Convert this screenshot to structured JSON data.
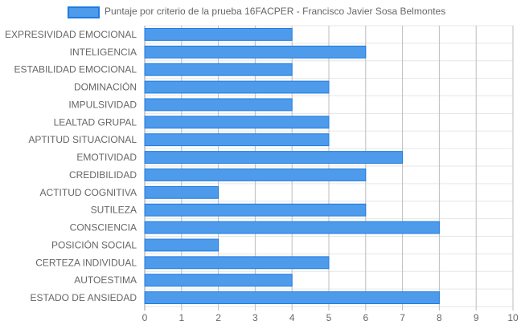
{
  "chart_data": {
    "type": "bar",
    "orientation": "horizontal",
    "categories": [
      "EXPRESIVIDAD EMOCIONAL",
      "INTELIGENCIA",
      "ESTABILIDAD EMOCIONAL",
      "DOMINACIÓN",
      "IMPULSIVIDAD",
      "LEALTAD GRUPAL",
      "APTITUD SITUACIONAL",
      "EMOTIVIDAD",
      "CREDIBILIDAD",
      "ACTITUD COGNITIVA",
      "SUTILEZA",
      "CONSCIENCIA",
      "POSICIÓN SOCIAL",
      "CERTEZA INDIVIDUAL",
      "AUTOESTIMA",
      "ESTADO DE ANSIEDAD"
    ],
    "series": [
      {
        "name": "Puntaje por criterio de la prueba 16FACPER - Francisco Javier Sosa Belmontes",
        "values": [
          4,
          6,
          4,
          5,
          4,
          5,
          5,
          7,
          6,
          2,
          6,
          8,
          2,
          5,
          4,
          8
        ]
      }
    ],
    "xlim": [
      0,
      10
    ],
    "x_ticks": [
      "0",
      "1",
      "2",
      "3",
      "4",
      "5",
      "6",
      "7",
      "8",
      "9",
      "10"
    ],
    "grid": true,
    "legend_position": "top",
    "colors": {
      "bar_fill": "#4d9bea",
      "bar_border": "#1f7be0",
      "grid": "#bdbdbd",
      "text": "#666666"
    }
  }
}
